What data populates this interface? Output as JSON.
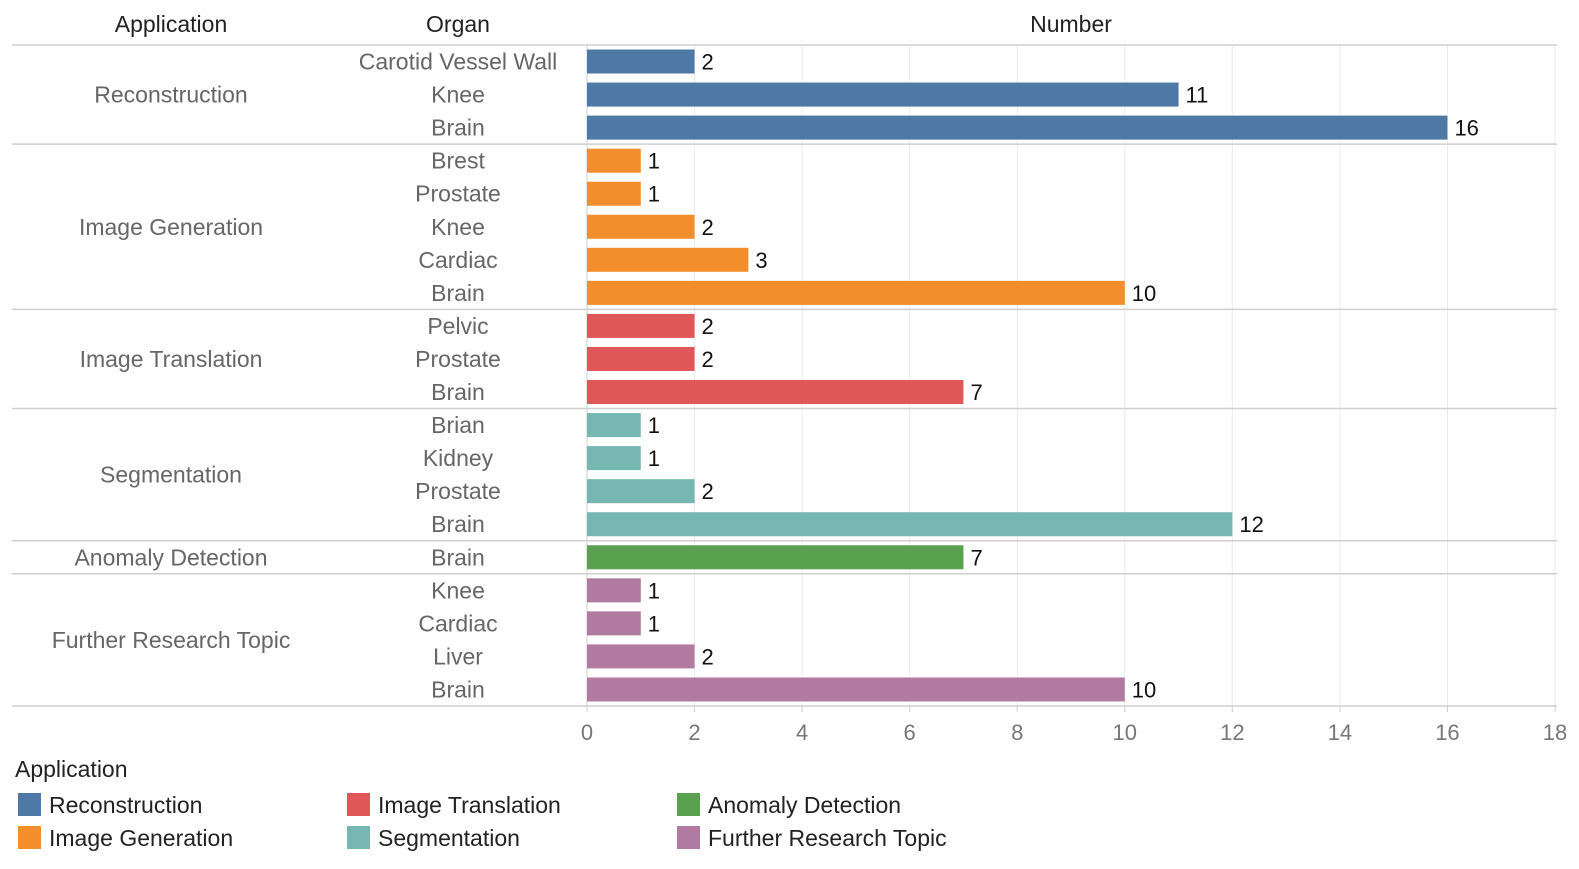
{
  "chart_data": {
    "type": "bar",
    "orientation": "horizontal",
    "headers": {
      "application": "Application",
      "organ": "Organ",
      "number": "Number"
    },
    "xlim": [
      0,
      18
    ],
    "xticks": [
      0,
      2,
      4,
      6,
      8,
      10,
      12,
      14,
      16,
      18
    ],
    "grid": true,
    "groups": [
      {
        "application": "Reconstruction",
        "color": "#4e79a7",
        "rows": [
          {
            "organ": "Carotid Vessel Wall",
            "value": 2
          },
          {
            "organ": "Knee",
            "value": 11
          },
          {
            "organ": "Brain",
            "value": 16
          }
        ]
      },
      {
        "application": "Image Generation",
        "color": "#f28e2b",
        "rows": [
          {
            "organ": "Brest",
            "value": 1
          },
          {
            "organ": "Prostate",
            "value": 1
          },
          {
            "organ": "Knee",
            "value": 2
          },
          {
            "organ": "Cardiac",
            "value": 3
          },
          {
            "organ": "Brain",
            "value": 10
          }
        ]
      },
      {
        "application": "Image Translation",
        "color": "#e15759",
        "rows": [
          {
            "organ": "Pelvic",
            "value": 2
          },
          {
            "organ": "Prostate",
            "value": 2
          },
          {
            "organ": "Brain",
            "value": 7
          }
        ]
      },
      {
        "application": "Segmentation",
        "color": "#76b7b2",
        "rows": [
          {
            "organ": "Brian",
            "value": 1
          },
          {
            "organ": "Kidney",
            "value": 1
          },
          {
            "organ": "Prostate",
            "value": 2
          },
          {
            "organ": "Brain",
            "value": 12
          }
        ]
      },
      {
        "application": "Anomaly Detection",
        "color": "#59a14f",
        "rows": [
          {
            "organ": "Brain",
            "value": 7
          }
        ]
      },
      {
        "application": "Further Research Topic",
        "color": "#b07aa1",
        "rows": [
          {
            "organ": "Knee",
            "value": 1
          },
          {
            "organ": "Cardiac",
            "value": 1
          },
          {
            "organ": "Liver",
            "value": 2
          },
          {
            "organ": "Brain",
            "value": 10
          }
        ]
      }
    ],
    "legend": {
      "title": "Application",
      "placement": "bottom-left",
      "items": [
        {
          "label": "Reconstruction",
          "color": "#4e79a7"
        },
        {
          "label": "Image Generation",
          "color": "#f28e2b"
        },
        {
          "label": "Image Translation",
          "color": "#e15759"
        },
        {
          "label": "Segmentation",
          "color": "#76b7b2"
        },
        {
          "label": "Anomaly Detection",
          "color": "#59a14f"
        },
        {
          "label": "Further Research Topic",
          "color": "#b07aa1"
        }
      ]
    }
  }
}
